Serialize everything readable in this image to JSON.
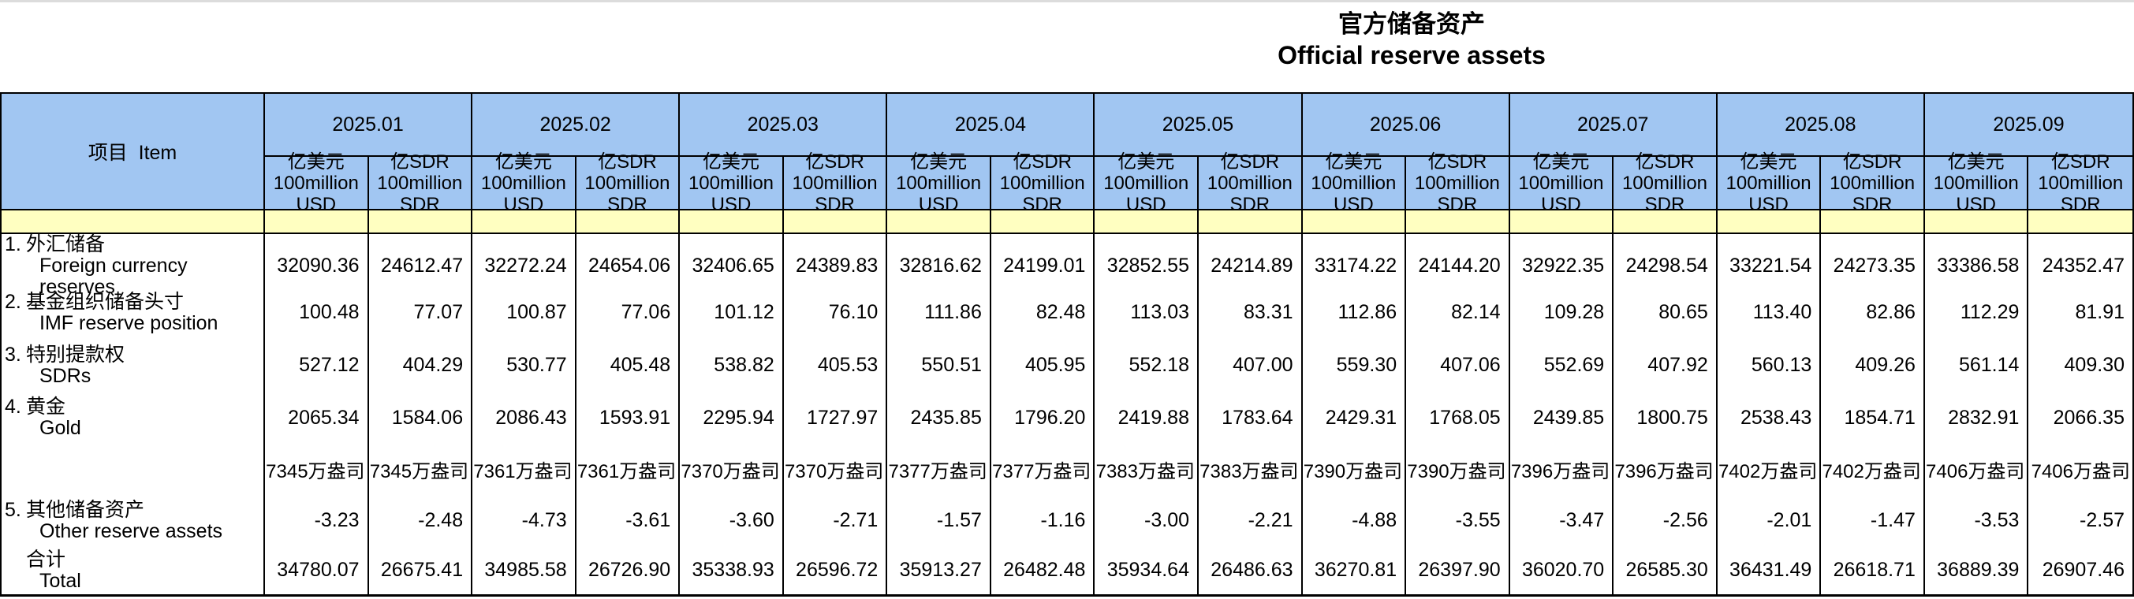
{
  "title": {
    "zh": "官方储备资产",
    "en": "Official reserve assets"
  },
  "table": {
    "item_header": "项目  Item",
    "months": [
      "2025.01",
      "2025.02",
      "2025.03",
      "2025.04",
      "2025.05",
      "2025.06",
      "2025.07",
      "2025.08",
      "2025.09"
    ],
    "unit_usd": {
      "zh": "亿美元",
      "en": "100million",
      "code": "USD"
    },
    "unit_sdr": {
      "zh": "亿SDR",
      "en": "100million",
      "code": "SDR"
    },
    "colors": {
      "header_blue": "#a1c6f2",
      "band_yellow": "#ffffc1"
    },
    "rows": [
      {
        "no": "1.",
        "zh": "外汇储备",
        "en": "Foreign currency reserves",
        "values": [
          "32090.36",
          "24612.47",
          "32272.24",
          "24654.06",
          "32406.65",
          "24389.83",
          "32816.62",
          "24199.01",
          "32852.55",
          "24214.89",
          "33174.22",
          "24144.20",
          "32922.35",
          "24298.54",
          "33221.54",
          "24273.35",
          "33386.58",
          "24352.47"
        ]
      },
      {
        "no": "2.",
        "zh": "基金组织储备头寸",
        "en": "IMF reserve position",
        "values": [
          "100.48",
          "77.07",
          "100.87",
          "77.06",
          "101.12",
          "76.10",
          "111.86",
          "82.48",
          "113.03",
          "83.31",
          "112.86",
          "82.14",
          "109.28",
          "80.65",
          "113.40",
          "82.86",
          "112.29",
          "81.91"
        ]
      },
      {
        "no": "3.",
        "zh": "特别提款权",
        "en": "SDRs",
        "values": [
          "527.12",
          "404.29",
          "530.77",
          "405.48",
          "538.82",
          "405.53",
          "550.51",
          "405.95",
          "552.18",
          "407.00",
          "559.30",
          "407.06",
          "552.69",
          "407.92",
          "560.13",
          "409.26",
          "561.14",
          "409.30"
        ]
      },
      {
        "no": "4.",
        "zh": "黄金",
        "en": "Gold",
        "values": [
          "2065.34",
          "1584.06",
          "2086.43",
          "1593.91",
          "2295.94",
          "1727.97",
          "2435.85",
          "1796.20",
          "2419.88",
          "1783.64",
          "2429.31",
          "1768.05",
          "2439.85",
          "1800.75",
          "2538.43",
          "1854.71",
          "2832.91",
          "2066.35"
        ]
      },
      {
        "no": "",
        "zh": "",
        "en": "",
        "values": [
          "7345万盎司",
          "7345万盎司",
          "7361万盎司",
          "7361万盎司",
          "7370万盎司",
          "7370万盎司",
          "7377万盎司",
          "7377万盎司",
          "7383万盎司",
          "7383万盎司",
          "7390万盎司",
          "7390万盎司",
          "7396万盎司",
          "7396万盎司",
          "7402万盎司",
          "7402万盎司",
          "7406万盎司",
          "7406万盎司"
        ]
      },
      {
        "no": "5.",
        "zh": "其他储备资产",
        "en": "Other reserve assets",
        "values": [
          "-3.23",
          "-2.48",
          "-4.73",
          "-3.61",
          "-3.60",
          "-2.71",
          "-1.57",
          "-1.16",
          "-3.00",
          "-2.21",
          "-4.88",
          "-3.55",
          "-3.47",
          "-2.56",
          "-2.01",
          "-1.47",
          "-3.53",
          "-2.57"
        ]
      },
      {
        "no": "",
        "zh": "合计",
        "en": "Total",
        "values": [
          "34780.07",
          "26675.41",
          "34985.58",
          "26726.90",
          "35338.93",
          "26596.72",
          "35913.27",
          "26482.48",
          "35934.64",
          "26486.63",
          "36270.81",
          "26397.90",
          "36020.70",
          "26585.30",
          "36431.49",
          "26618.71",
          "36889.39",
          "26907.46"
        ]
      }
    ]
  }
}
